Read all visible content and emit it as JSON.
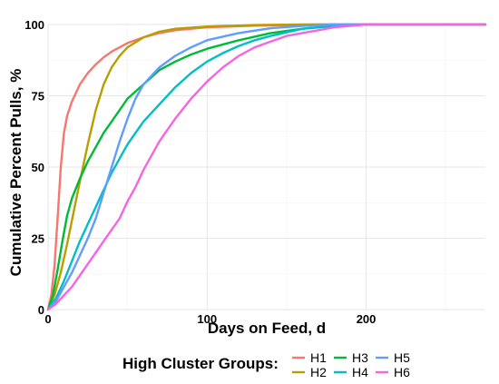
{
  "chart_data": {
    "type": "line",
    "title": "",
    "xlabel": "Days on Feed, d",
    "ylabel": "Cumulative Percent Pulls, %",
    "xlim": [
      0,
      275
    ],
    "ylim": [
      0,
      100
    ],
    "x_ticks": [
      0,
      100,
      200
    ],
    "y_ticks": [
      0,
      25,
      50,
      75,
      100
    ],
    "grid": true,
    "legend": {
      "title": "High Cluster Groups:",
      "position": "bottom"
    },
    "series": [
      {
        "name": "H1",
        "color": "#F8766D",
        "points": [
          [
            0,
            0
          ],
          [
            2,
            5
          ],
          [
            4,
            15
          ],
          [
            6,
            32
          ],
          [
            8,
            50
          ],
          [
            10,
            62
          ],
          [
            12,
            68
          ],
          [
            15,
            73
          ],
          [
            20,
            79
          ],
          [
            25,
            83
          ],
          [
            30,
            86
          ],
          [
            35,
            88.5
          ],
          [
            40,
            90.5
          ],
          [
            50,
            93.5
          ],
          [
            60,
            95.5
          ],
          [
            70,
            97
          ],
          [
            80,
            98
          ],
          [
            100,
            99
          ],
          [
            130,
            99.6
          ],
          [
            170,
            100
          ],
          [
            275,
            100
          ]
        ]
      },
      {
        "name": "H2",
        "color": "#B79F00",
        "points": [
          [
            0,
            0
          ],
          [
            4,
            5
          ],
          [
            8,
            13
          ],
          [
            12,
            23
          ],
          [
            16,
            34
          ],
          [
            20,
            45
          ],
          [
            25,
            58
          ],
          [
            30,
            70
          ],
          [
            35,
            79
          ],
          [
            40,
            85
          ],
          [
            45,
            89
          ],
          [
            50,
            92
          ],
          [
            60,
            95.5
          ],
          [
            70,
            97.5
          ],
          [
            80,
            98.5
          ],
          [
            100,
            99.3
          ],
          [
            130,
            99.8
          ],
          [
            160,
            100
          ],
          [
            275,
            100
          ]
        ]
      },
      {
        "name": "H3",
        "color": "#00BA38",
        "points": [
          [
            0,
            0
          ],
          [
            3,
            5
          ],
          [
            6,
            14
          ],
          [
            9,
            24
          ],
          [
            12,
            33
          ],
          [
            15,
            39
          ],
          [
            20,
            46
          ],
          [
            25,
            52
          ],
          [
            30,
            57
          ],
          [
            35,
            62
          ],
          [
            40,
            66
          ],
          [
            45,
            70
          ],
          [
            50,
            74
          ],
          [
            60,
            79
          ],
          [
            70,
            84
          ],
          [
            80,
            87
          ],
          [
            90,
            89.5
          ],
          [
            100,
            91.5
          ],
          [
            120,
            94.5
          ],
          [
            140,
            97
          ],
          [
            160,
            98.5
          ],
          [
            180,
            99.5
          ],
          [
            200,
            100
          ],
          [
            275,
            100
          ]
        ]
      },
      {
        "name": "H4",
        "color": "#00BFC4",
        "points": [
          [
            0,
            0
          ],
          [
            5,
            4
          ],
          [
            10,
            10
          ],
          [
            15,
            17
          ],
          [
            20,
            24
          ],
          [
            25,
            30
          ],
          [
            30,
            36
          ],
          [
            35,
            42
          ],
          [
            40,
            48
          ],
          [
            45,
            53
          ],
          [
            50,
            58
          ],
          [
            55,
            62
          ],
          [
            60,
            66
          ],
          [
            70,
            72
          ],
          [
            80,
            78
          ],
          [
            90,
            83
          ],
          [
            100,
            87
          ],
          [
            110,
            90
          ],
          [
            120,
            92.5
          ],
          [
            130,
            94.5
          ],
          [
            140,
            96
          ],
          [
            160,
            98.5
          ],
          [
            180,
            99.5
          ],
          [
            200,
            100
          ],
          [
            275,
            100
          ]
        ]
      },
      {
        "name": "H5",
        "color": "#619CFF",
        "points": [
          [
            0,
            0
          ],
          [
            5,
            3
          ],
          [
            10,
            8
          ],
          [
            15,
            13
          ],
          [
            20,
            19
          ],
          [
            25,
            25
          ],
          [
            30,
            32
          ],
          [
            35,
            41
          ],
          [
            40,
            50
          ],
          [
            45,
            59
          ],
          [
            50,
            67
          ],
          [
            55,
            74
          ],
          [
            60,
            79
          ],
          [
            70,
            85
          ],
          [
            80,
            89
          ],
          [
            90,
            92
          ],
          [
            100,
            94.5
          ],
          [
            120,
            97
          ],
          [
            140,
            98.7
          ],
          [
            160,
            99.5
          ],
          [
            180,
            100
          ],
          [
            275,
            100
          ]
        ]
      },
      {
        "name": "H6",
        "color": "#F564E3",
        "points": [
          [
            0,
            0
          ],
          [
            5,
            2
          ],
          [
            10,
            5
          ],
          [
            15,
            8
          ],
          [
            20,
            12
          ],
          [
            25,
            16
          ],
          [
            30,
            20
          ],
          [
            35,
            24
          ],
          [
            40,
            28
          ],
          [
            45,
            32
          ],
          [
            50,
            38
          ],
          [
            55,
            43
          ],
          [
            60,
            49
          ],
          [
            65,
            54
          ],
          [
            70,
            59
          ],
          [
            80,
            67
          ],
          [
            90,
            74
          ],
          [
            100,
            80
          ],
          [
            110,
            85
          ],
          [
            120,
            89
          ],
          [
            130,
            92
          ],
          [
            140,
            94
          ],
          [
            150,
            96
          ],
          [
            160,
            97
          ],
          [
            170,
            98
          ],
          [
            180,
            99
          ],
          [
            190,
            99.5
          ],
          [
            200,
            100
          ],
          [
            275,
            100
          ]
        ]
      }
    ]
  }
}
